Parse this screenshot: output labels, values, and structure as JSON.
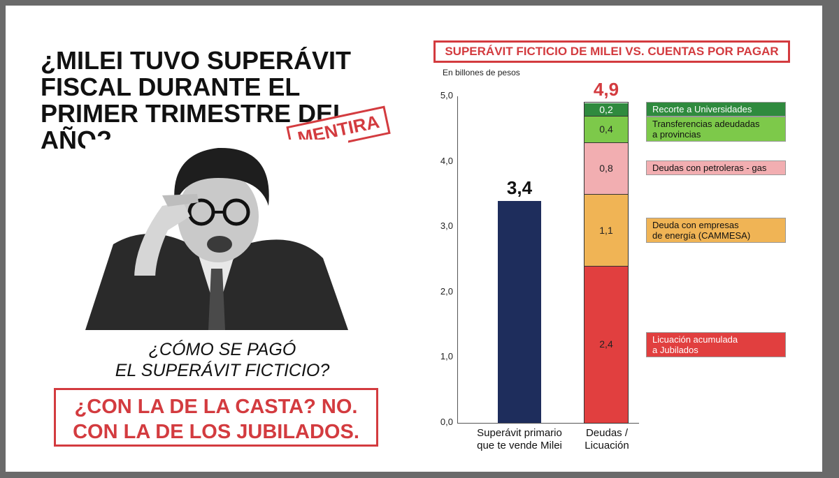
{
  "headline": "¿MILEI TUVO SUPERÁVIT FISCAL DURANTE EL PRIMER TRIMESTRE DEL AÑO?",
  "stamp": "MENTIRA",
  "question_line1": "¿CÓMO SE PAGÓ",
  "question_line2": "EL SUPERÁVIT FICTICIO?",
  "answer_line1": "¿CON LA DE LA CASTA? NO.",
  "answer_line2": "CON LA DE LOS JUBILADOS.",
  "chart_data": {
    "type": "bar",
    "title": "SUPERÁVIT FICTICIO DE MILEI VS. CUENTAS POR PAGAR",
    "ylabel": "En billones de pesos",
    "ylim": [
      0,
      5
    ],
    "yticks": [
      "0,0",
      "1,0",
      "2,0",
      "3,0",
      "4,0",
      "5,0"
    ],
    "grid": false,
    "bars": [
      {
        "category_lines": [
          "Superávit primario",
          "que te vende Milei"
        ],
        "total_label": "3,4",
        "total_color": "#111111",
        "segments": [
          {
            "value": 3.4,
            "label": "",
            "color": "#1e2d5c",
            "legend_lines": []
          }
        ]
      },
      {
        "category_lines": [
          "Deudas /",
          "Licuación"
        ],
        "total_label": "4,9",
        "total_color": "#d33b3f",
        "segments": [
          {
            "value": 2.4,
            "label": "2,4",
            "color": "#e13f3f",
            "legend_lines": [
              "Licuación acumulada",
              "a Jubilados"
            ]
          },
          {
            "value": 1.1,
            "label": "1,1",
            "color": "#f0b455",
            "legend_lines": [
              "Deuda con empresas",
              "de energía (CAMMESA)"
            ]
          },
          {
            "value": 0.8,
            "label": "0,8",
            "color": "#f2aeb1",
            "legend_lines": [
              "Deudas con petroleras - gas"
            ]
          },
          {
            "value": 0.4,
            "label": "0,4",
            "color": "#7dc94a",
            "legend_lines": [
              "Transferencias adeudadas",
              "a provincias"
            ]
          },
          {
            "value": 0.2,
            "label": "0,2",
            "color": "#2f8a3e",
            "legend_lines": [
              "Recorte a Universidades"
            ]
          }
        ]
      }
    ]
  }
}
